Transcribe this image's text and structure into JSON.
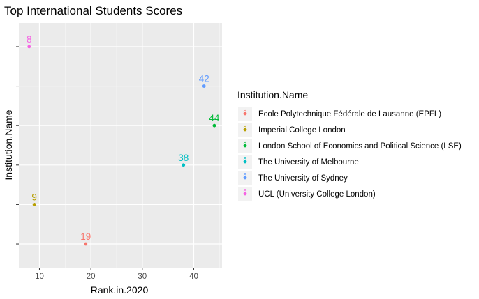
{
  "chart_data": {
    "type": "scatter",
    "title": "Top International Students Scores",
    "xlabel": "Rank.in.2020",
    "ylabel": "Institution.Name",
    "xlim": [
      6,
      45.5
    ],
    "xticks": [
      10,
      20,
      30,
      40
    ],
    "y_categories": [
      "Ecole Polytechnique Fédérale de Lausanne (EPFL)",
      "Imperial College London",
      "The University of Melbourne",
      "London School of Economics and Political Science (LSE)",
      "The University of Sydney",
      "UCL (University College London)"
    ],
    "y_tick_labels_visible": false,
    "grid": true,
    "legend": {
      "title": "Institution.Name",
      "placement": "right"
    },
    "series": [
      {
        "name": "Ecole Polytechnique Fédérale de Lausanne (EPFL)",
        "color": "#F8766D",
        "x": 19,
        "label": "19"
      },
      {
        "name": "Imperial College London",
        "color": "#B79F00",
        "x": 9,
        "label": "9"
      },
      {
        "name": "London School of Economics and Political Science (LSE)",
        "color": "#00BA38",
        "x": 44,
        "label": "44"
      },
      {
        "name": "The University of Melbourne",
        "color": "#00BFC4",
        "x": 38,
        "label": "38"
      },
      {
        "name": "The University of Sydney",
        "color": "#619CFF",
        "x": 42,
        "label": "42"
      },
      {
        "name": "UCL (University College London)",
        "color": "#F564E3",
        "x": 8,
        "label": "8"
      }
    ]
  }
}
